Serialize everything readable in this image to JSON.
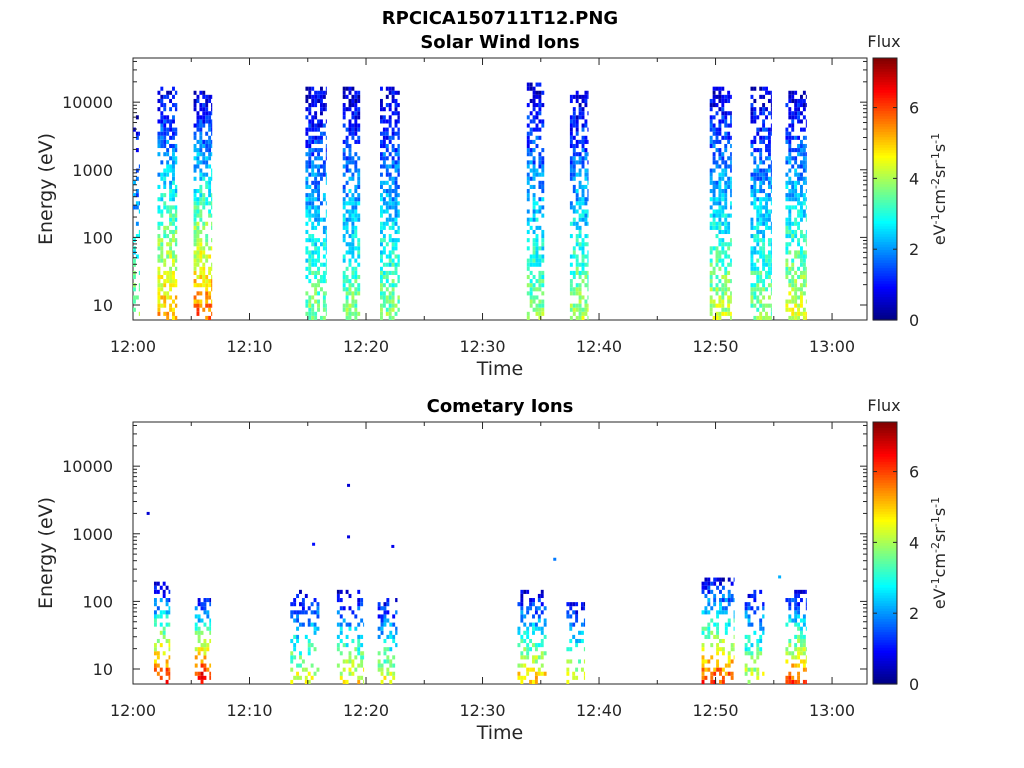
{
  "figure_title": "RPCICA150711T12.PNG",
  "colors": {
    "axis": "#262626",
    "background": "#ffffff",
    "colormap": "jet"
  },
  "chart_data": [
    {
      "type": "heatmap",
      "title": "Solar Wind Ions",
      "xlabel": "Time",
      "ylabel": "Energy (eV)",
      "x_ticks": [
        "12:00",
        "12:10",
        "12:20",
        "12:30",
        "12:40",
        "12:50",
        "13:00"
      ],
      "y_ticks": [
        "10",
        "100",
        "1000",
        "10000"
      ],
      "y_scale": "log",
      "xlim_minutes": [
        0,
        63
      ],
      "ylim": [
        6,
        45000
      ],
      "colorbar": {
        "label": "Flux",
        "unit": "eV-1cm-2sr-1s-1",
        "ticks": [
          "0",
          "2",
          "4",
          "6"
        ],
        "range": [
          0,
          7.4
        ]
      },
      "bursts": [
        {
          "t_start": 0.0,
          "t_end": 0.6,
          "emax": 6000,
          "low_flux": 4.0,
          "density": 0.35
        },
        {
          "t_start": 2.1,
          "t_end": 3.8,
          "emax": 18000,
          "low_flux": 5.2,
          "density": 0.6
        },
        {
          "t_start": 5.2,
          "t_end": 6.8,
          "emax": 15000,
          "low_flux": 5.8,
          "density": 0.6
        },
        {
          "t_start": 14.8,
          "t_end": 16.6,
          "emax": 16000,
          "low_flux": 3.8,
          "density": 0.6
        },
        {
          "t_start": 18.0,
          "t_end": 19.5,
          "emax": 16000,
          "low_flux": 3.8,
          "density": 0.6
        },
        {
          "t_start": 21.2,
          "t_end": 22.9,
          "emax": 18000,
          "low_flux": 3.8,
          "density": 0.6
        },
        {
          "t_start": 33.8,
          "t_end": 35.3,
          "emax": 20000,
          "low_flux": 3.8,
          "density": 0.6
        },
        {
          "t_start": 37.5,
          "t_end": 39.1,
          "emax": 15000,
          "low_flux": 4.0,
          "density": 0.6
        },
        {
          "t_start": 49.5,
          "t_end": 51.4,
          "emax": 18000,
          "low_flux": 4.2,
          "density": 0.6
        },
        {
          "t_start": 53.0,
          "t_end": 54.8,
          "emax": 18000,
          "low_flux": 3.8,
          "density": 0.6
        },
        {
          "t_start": 56.0,
          "t_end": 57.8,
          "emax": 15000,
          "low_flux": 4.5,
          "density": 0.6
        }
      ]
    },
    {
      "type": "heatmap",
      "title": "Cometary Ions",
      "xlabel": "Time",
      "ylabel": "Energy (eV)",
      "x_ticks": [
        "12:00",
        "12:10",
        "12:20",
        "12:30",
        "12:40",
        "12:50",
        "13:00"
      ],
      "y_ticks": [
        "10",
        "100",
        "1000",
        "10000"
      ],
      "y_scale": "log",
      "xlim_minutes": [
        0,
        63
      ],
      "ylim": [
        6,
        45000
      ],
      "colorbar": {
        "label": "Flux",
        "unit": "eV-1cm-2sr-1s-1",
        "ticks": [
          "0",
          "2",
          "4",
          "6"
        ],
        "range": [
          0,
          7.4
        ]
      },
      "bursts": [
        {
          "t_start": 1.8,
          "t_end": 3.2,
          "emax": 200,
          "low_flux": 6.4,
          "density": 0.5
        },
        {
          "t_start": 5.3,
          "t_end": 6.7,
          "emax": 120,
          "low_flux": 7.0,
          "density": 0.5
        },
        {
          "t_start": 13.5,
          "t_end": 16.0,
          "emax": 140,
          "low_flux": 4.6,
          "density": 0.35
        },
        {
          "t_start": 17.5,
          "t_end": 19.8,
          "emax": 140,
          "low_flux": 4.8,
          "density": 0.35
        },
        {
          "t_start": 21.0,
          "t_end": 22.7,
          "emax": 120,
          "low_flux": 4.6,
          "density": 0.35
        },
        {
          "t_start": 33.0,
          "t_end": 35.5,
          "emax": 140,
          "low_flux": 5.2,
          "density": 0.45
        },
        {
          "t_start": 37.2,
          "t_end": 38.8,
          "emax": 100,
          "low_flux": 4.8,
          "density": 0.35
        },
        {
          "t_start": 48.8,
          "t_end": 51.6,
          "emax": 220,
          "low_flux": 6.2,
          "density": 0.45
        },
        {
          "t_start": 52.5,
          "t_end": 54.2,
          "emax": 180,
          "low_flux": 4.5,
          "density": 0.35
        },
        {
          "t_start": 56.0,
          "t_end": 57.8,
          "emax": 150,
          "low_flux": 6.0,
          "density": 0.45
        }
      ],
      "isolated_points": [
        {
          "t": 1.3,
          "e": 2000,
          "flux": 0.6
        },
        {
          "t": 15.5,
          "e": 700,
          "flux": 1.0
        },
        {
          "t": 18.5,
          "e": 5200,
          "flux": 0.6
        },
        {
          "t": 18.5,
          "e": 900,
          "flux": 0.7
        },
        {
          "t": 22.3,
          "e": 650,
          "flux": 0.8
        },
        {
          "t": 36.2,
          "e": 420,
          "flux": 1.8
        },
        {
          "t": 55.5,
          "e": 230,
          "flux": 2.2
        }
      ]
    }
  ]
}
